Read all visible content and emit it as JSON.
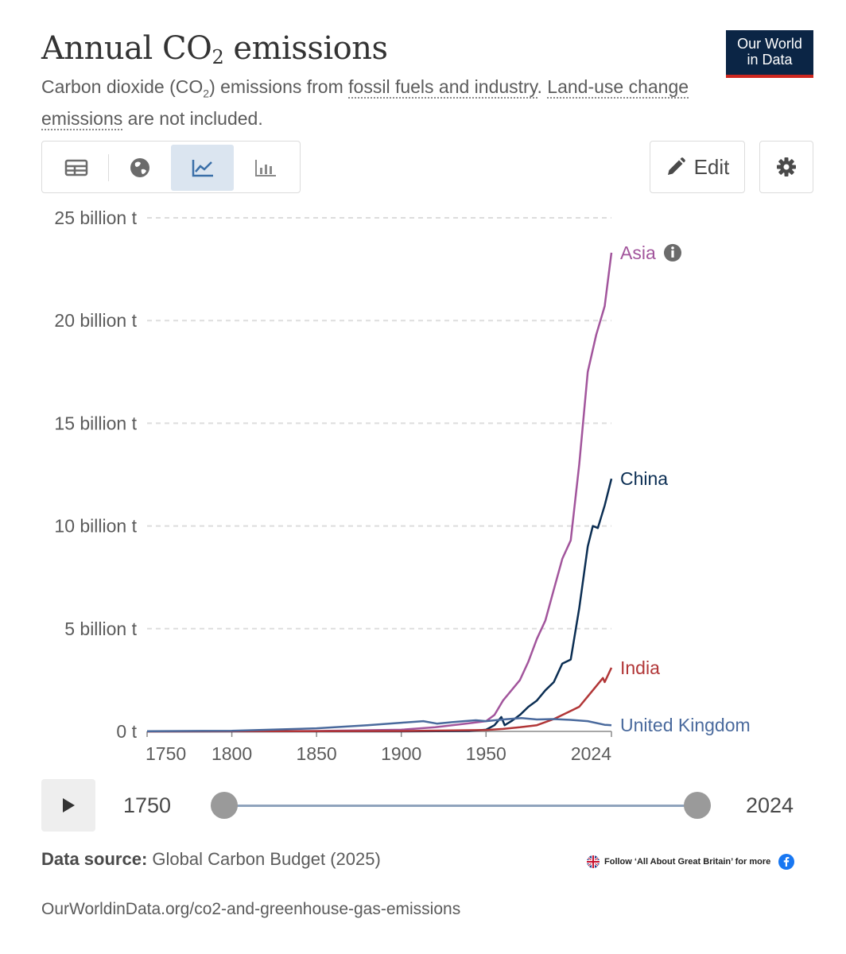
{
  "header": {
    "title_main": "Annual CO",
    "title_sub": "2",
    "title_end": " emissions",
    "subtitle_a": "Carbon dioxide (CO",
    "subtitle_b": "2",
    "subtitle_c": ") emissions from ",
    "subtitle_link1": "fossil fuels and industry",
    "subtitle_d": ". ",
    "subtitle_link2": "Land-use change emissions",
    "subtitle_e": " are not included."
  },
  "logo": {
    "line1": "Our World",
    "line2": "in Data",
    "bg": "#0b2545",
    "accent": "#ce261e"
  },
  "toolbar": {
    "tabs": [
      {
        "icon": "table-icon",
        "active": false
      },
      {
        "icon": "globe-icon",
        "active": false
      },
      {
        "icon": "line-chart-icon",
        "active": true
      },
      {
        "icon": "bar-chart-icon",
        "active": false
      }
    ],
    "edit_label": "Edit",
    "settings_icon": "gear-icon"
  },
  "chart_data": {
    "type": "line",
    "title": "Annual CO₂ emissions",
    "ylim": [
      0,
      25000000000
    ],
    "xlim": [
      1750,
      2024
    ],
    "y_ticks": [
      {
        "value": 0,
        "label": "0 t"
      },
      {
        "value": 5000000000,
        "label": "5 billion t"
      },
      {
        "value": 10000000000,
        "label": "10 billion t"
      },
      {
        "value": 15000000000,
        "label": "15 billion t"
      },
      {
        "value": 20000000000,
        "label": "20 billion t"
      },
      {
        "value": 25000000000,
        "label": "25 billion t"
      }
    ],
    "x_ticks": [
      {
        "value": 1750,
        "label": "1750"
      },
      {
        "value": 1800,
        "label": "1800"
      },
      {
        "value": 1850,
        "label": "1850"
      },
      {
        "value": 1900,
        "label": "1900"
      },
      {
        "value": 1950,
        "label": "1950"
      },
      {
        "value": 2024,
        "label": "2024"
      }
    ],
    "grid": true,
    "series": [
      {
        "name": "Asia",
        "color": "#a2559c",
        "info_icon": true,
        "points": [
          [
            1750,
            0
          ],
          [
            1850,
            20000000
          ],
          [
            1900,
            80000000
          ],
          [
            1920,
            200000000
          ],
          [
            1940,
            400000000
          ],
          [
            1950,
            500000000
          ],
          [
            1955,
            800000000
          ],
          [
            1960,
            1500000000
          ],
          [
            1970,
            2500000000
          ],
          [
            1975,
            3400000000
          ],
          [
            1980,
            4500000000
          ],
          [
            1985,
            5400000000
          ],
          [
            1990,
            6900000000
          ],
          [
            1995,
            8400000000
          ],
          [
            2000,
            9300000000
          ],
          [
            2005,
            13000000000
          ],
          [
            2010,
            17500000000
          ],
          [
            2015,
            19300000000
          ],
          [
            2020,
            20700000000
          ],
          [
            2024,
            23300000000
          ]
        ]
      },
      {
        "name": "China",
        "color": "#0b2e53",
        "points": [
          [
            1750,
            0
          ],
          [
            1900,
            1000000
          ],
          [
            1940,
            20000000
          ],
          [
            1950,
            80000000
          ],
          [
            1955,
            300000000
          ],
          [
            1959,
            700000000
          ],
          [
            1961,
            300000000
          ],
          [
            1965,
            500000000
          ],
          [
            1970,
            800000000
          ],
          [
            1975,
            1200000000
          ],
          [
            1980,
            1500000000
          ],
          [
            1985,
            2000000000
          ],
          [
            1990,
            2400000000
          ],
          [
            1995,
            3300000000
          ],
          [
            2000,
            3500000000
          ],
          [
            2005,
            6000000000
          ],
          [
            2010,
            9000000000
          ],
          [
            2013,
            10000000000
          ],
          [
            2016,
            9900000000
          ],
          [
            2020,
            11000000000
          ],
          [
            2024,
            12300000000
          ]
        ]
      },
      {
        "name": "India",
        "color": "#b13637",
        "points": [
          [
            1750,
            0
          ],
          [
            1900,
            20000000
          ],
          [
            1950,
            70000000
          ],
          [
            1960,
            120000000
          ],
          [
            1970,
            200000000
          ],
          [
            1980,
            300000000
          ],
          [
            1990,
            600000000
          ],
          [
            2000,
            1000000000
          ],
          [
            2005,
            1200000000
          ],
          [
            2010,
            1700000000
          ],
          [
            2015,
            2200000000
          ],
          [
            2019,
            2600000000
          ],
          [
            2020,
            2400000000
          ],
          [
            2024,
            3100000000
          ]
        ]
      },
      {
        "name": "United Kingdom",
        "color": "#4a6a9d",
        "points": [
          [
            1750,
            10000000
          ],
          [
            1800,
            30000000
          ],
          [
            1850,
            150000000
          ],
          [
            1880,
            300000000
          ],
          [
            1900,
            420000000
          ],
          [
            1913,
            500000000
          ],
          [
            1921,
            380000000
          ],
          [
            1930,
            450000000
          ],
          [
            1937,
            500000000
          ],
          [
            1944,
            540000000
          ],
          [
            1950,
            500000000
          ],
          [
            1960,
            580000000
          ],
          [
            1971,
            650000000
          ],
          [
            1980,
            580000000
          ],
          [
            1990,
            600000000
          ],
          [
            2000,
            560000000
          ],
          [
            2010,
            500000000
          ],
          [
            2020,
            320000000
          ],
          [
            2024,
            300000000
          ]
        ]
      }
    ]
  },
  "timeline": {
    "start_label": "1750",
    "end_label": "2024",
    "play_icon": "play-icon"
  },
  "footer": {
    "source_label": "Data source:",
    "source_value": " Global Carbon Budget (2025)",
    "promo_text": "Follow ‘All About Great Britain’ for more",
    "url": "OurWorldinData.org/co2-and-greenhouse-gas-emissions"
  }
}
